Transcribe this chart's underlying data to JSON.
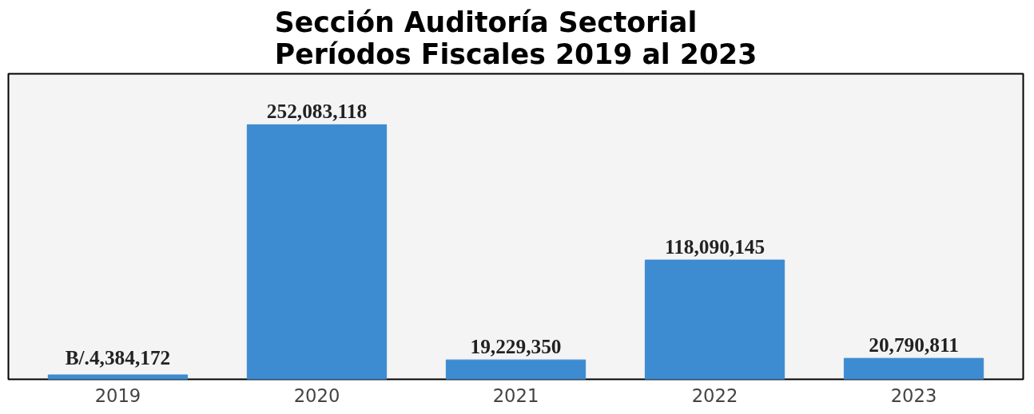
{
  "chart_data": {
    "type": "bar",
    "title": "Sección Auditoría  Sectorial\nPeríodos Fiscales 2019 al 2023",
    "categories": [
      "2019",
      "2020",
      "2021",
      "2022",
      "2023"
    ],
    "values": [
      4384172,
      252083118,
      19229350,
      118090145,
      20790811
    ],
    "color": "#3d8bd0",
    "value_labels": [
      "B/.4,384,172",
      "252,083,118",
      "19,229,350",
      "118,090,145",
      "20,790,811"
    ],
    "grid": false
  }
}
